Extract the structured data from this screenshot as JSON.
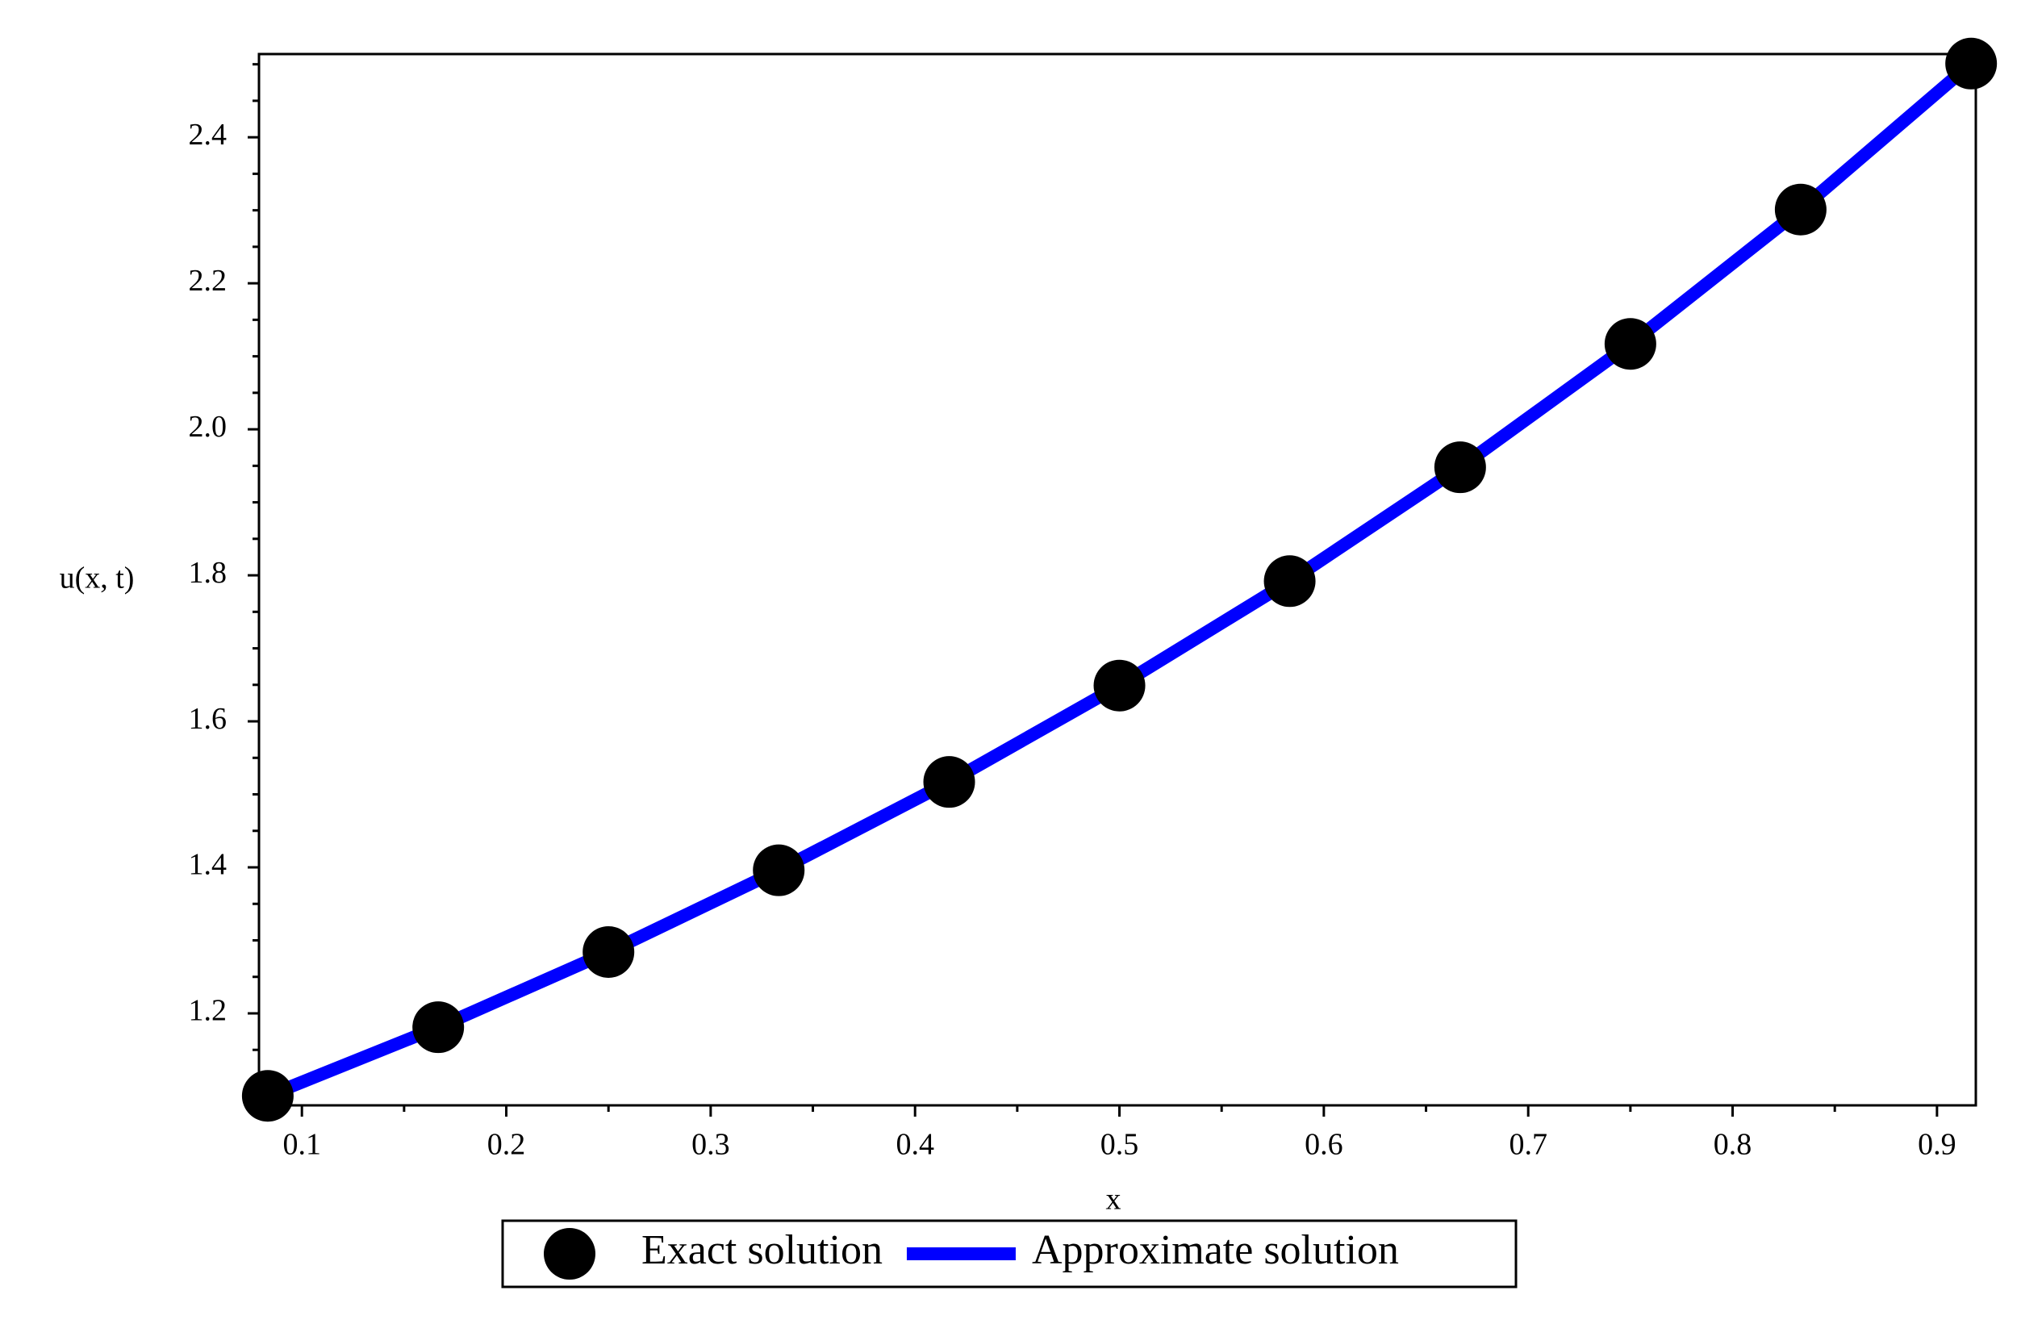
{
  "chart_data": {
    "type": "line",
    "x_label": "x",
    "y_label": "u(x, t)",
    "x": [
      0.0833,
      0.1667,
      0.25,
      0.3333,
      0.4167,
      0.5,
      0.5833,
      0.6667,
      0.75,
      0.8333,
      0.9167
    ],
    "series": [
      {
        "name": "Exact solution",
        "color": "#000000",
        "style": "points",
        "values": [
          1.087,
          1.181,
          1.284,
          1.396,
          1.517,
          1.649,
          1.792,
          1.948,
          2.117,
          2.301,
          2.501
        ]
      },
      {
        "name": "Approximate solution",
        "color": "#0000ff",
        "style": "line",
        "values": [
          1.087,
          1.181,
          1.284,
          1.396,
          1.517,
          1.649,
          1.792,
          1.948,
          2.117,
          2.301,
          2.501
        ]
      }
    ],
    "xlim": [
      0.079,
      0.919
    ],
    "ylim": [
      1.074,
      2.514
    ],
    "xticks": [
      0.1,
      0.2,
      0.3,
      0.4,
      0.5,
      0.6,
      0.7,
      0.8,
      0.9
    ],
    "yticks": [
      1.2,
      {
        "value": 1.4,
        "label": "1.4"
      },
      1.6,
      1.8,
      {
        "value": 2.0,
        "label": "2.0"
      },
      2.2,
      2.4
    ],
    "x_minor_ticks": [
      0.15,
      0.25,
      0.35,
      0.45,
      0.55,
      0.65,
      0.75,
      0.85
    ],
    "y_minor_ticks": [
      1.1,
      1.15,
      1.25,
      1.3,
      1.35,
      1.45,
      1.5,
      1.55,
      1.65,
      1.7,
      1.75,
      1.85,
      1.9,
      1.95,
      2.05,
      2.1,
      2.15,
      2.25,
      2.3,
      2.35,
      2.45,
      2.5
    ],
    "grid": false,
    "legend": "bottom"
  }
}
